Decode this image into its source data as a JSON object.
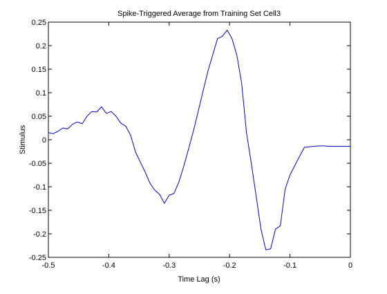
{
  "chart_data": {
    "type": "line",
    "title": "Spike-Triggered Average from Training Set Cell3",
    "xlabel": "Time Lag (s)",
    "ylabel": "Stimulus",
    "xlim": [
      -0.5,
      0
    ],
    "ylim": [
      -0.25,
      0.25
    ],
    "xticks": [
      -0.5,
      -0.4,
      -0.3,
      -0.2,
      -0.1,
      0
    ],
    "xtick_labels": [
      "-0.5",
      "-0.4",
      "-0.3",
      "-0.2",
      "-0.1",
      "0"
    ],
    "yticks": [
      0.25,
      0.2,
      0.15,
      0.1,
      0.05,
      0,
      -0.05,
      -0.1,
      -0.15,
      -0.2,
      -0.25
    ],
    "ytick_labels": [
      "0.25",
      "0.2",
      "0.15",
      "0.1",
      "0.05",
      "0",
      "-0.05",
      "-0.1",
      "-0.15",
      "-0.2",
      "-0.25"
    ],
    "grid": false,
    "line_color": "#0000cc",
    "series": [
      {
        "x": [
          -0.5,
          -0.492,
          -0.484,
          -0.476,
          -0.468,
          -0.46,
          -0.452,
          -0.444,
          -0.436,
          -0.428,
          -0.42,
          -0.412,
          -0.404,
          -0.396,
          -0.388,
          -0.38,
          -0.372,
          -0.364,
          -0.356,
          -0.348,
          -0.34,
          -0.332,
          -0.324,
          -0.316,
          -0.308,
          -0.3,
          -0.292,
          -0.284,
          -0.276,
          -0.268,
          -0.26,
          -0.252,
          -0.244,
          -0.236,
          -0.228,
          -0.22,
          -0.212,
          -0.204,
          -0.196,
          -0.188,
          -0.18,
          -0.172,
          -0.164,
          -0.156,
          -0.148,
          -0.14,
          -0.132,
          -0.124,
          -0.116,
          -0.108,
          -0.1,
          -0.092,
          -0.084,
          -0.076,
          -0.068,
          -0.06,
          -0.052,
          -0.044,
          -0.036,
          -0.028,
          -0.02,
          -0.012,
          -0.004,
          0
        ],
        "y": [
          0.015,
          0.013,
          0.018,
          0.025,
          0.023,
          0.033,
          0.038,
          0.034,
          0.05,
          0.06,
          0.059,
          0.07,
          0.056,
          0.06,
          0.05,
          0.035,
          0.029,
          0.01,
          -0.025,
          -0.047,
          -0.068,
          -0.092,
          -0.107,
          -0.116,
          -0.135,
          -0.118,
          -0.114,
          -0.09,
          -0.057,
          -0.02,
          0.018,
          0.06,
          0.103,
          0.145,
          0.18,
          0.215,
          0.22,
          0.233,
          0.215,
          0.18,
          0.12,
          0.015,
          -0.05,
          -0.12,
          -0.19,
          -0.234,
          -0.232,
          -0.19,
          -0.183,
          -0.105,
          -0.075,
          -0.055,
          -0.035,
          -0.016,
          -0.015,
          -0.014,
          -0.013,
          -0.013,
          -0.014,
          -0.014,
          -0.014,
          -0.014,
          -0.014,
          -0.014
        ]
      }
    ]
  }
}
